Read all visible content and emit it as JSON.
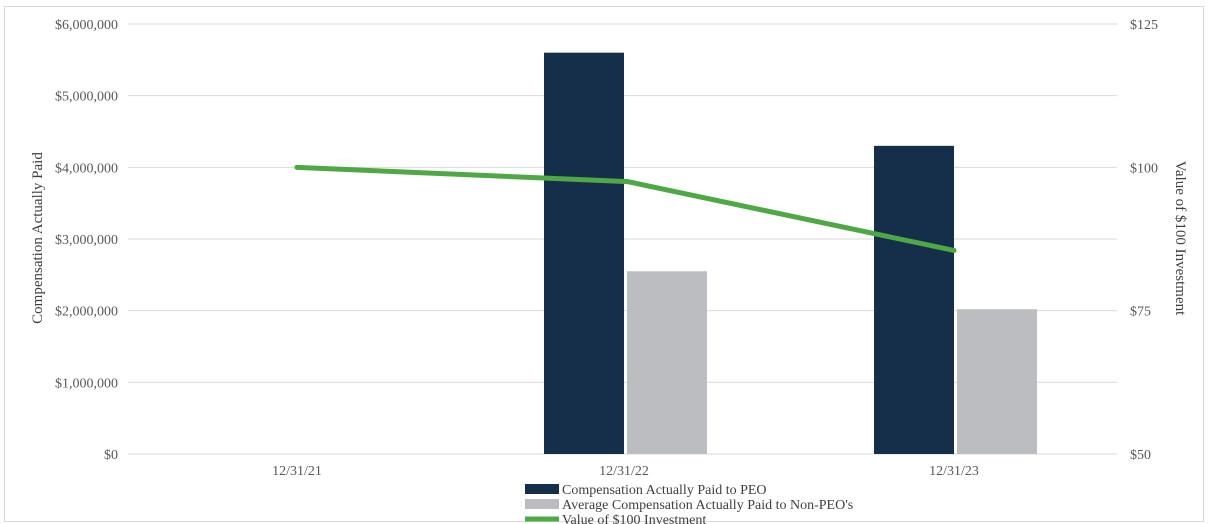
{
  "chart_data": {
    "type": "bar",
    "categories": [
      "12/31/21",
      "12/31/22",
      "12/31/23"
    ],
    "series": [
      {
        "name": "Compensation Actually Paid to PEO",
        "kind": "bar",
        "axis": "left",
        "color": "#152e49",
        "values": [
          null,
          5600000,
          4300000
        ]
      },
      {
        "name": "Average Compensation Actually Paid to Non-PEO's",
        "kind": "bar",
        "axis": "left",
        "color": "#bcbdc0",
        "values": [
          null,
          2550000,
          2020000
        ]
      },
      {
        "name": "Value of $100 Investment",
        "kind": "line",
        "axis": "right",
        "color": "#4ea845",
        "values": [
          100,
          97.5,
          85.5
        ]
      }
    ],
    "ylabel": "Compensation Actually Paid",
    "y2label": "Value of $100 Investment",
    "ylim": [
      0,
      6000000
    ],
    "y2lim": [
      50,
      125
    ],
    "yticks": [
      "$0",
      "$1,000,000",
      "$2,000,000",
      "$3,000,000",
      "$4,000,000",
      "$5,000,000",
      "$6,000,000"
    ],
    "y2ticks": [
      "$50",
      "$75",
      "$100",
      "$125"
    ],
    "grid": true,
    "legend": "bottom"
  }
}
